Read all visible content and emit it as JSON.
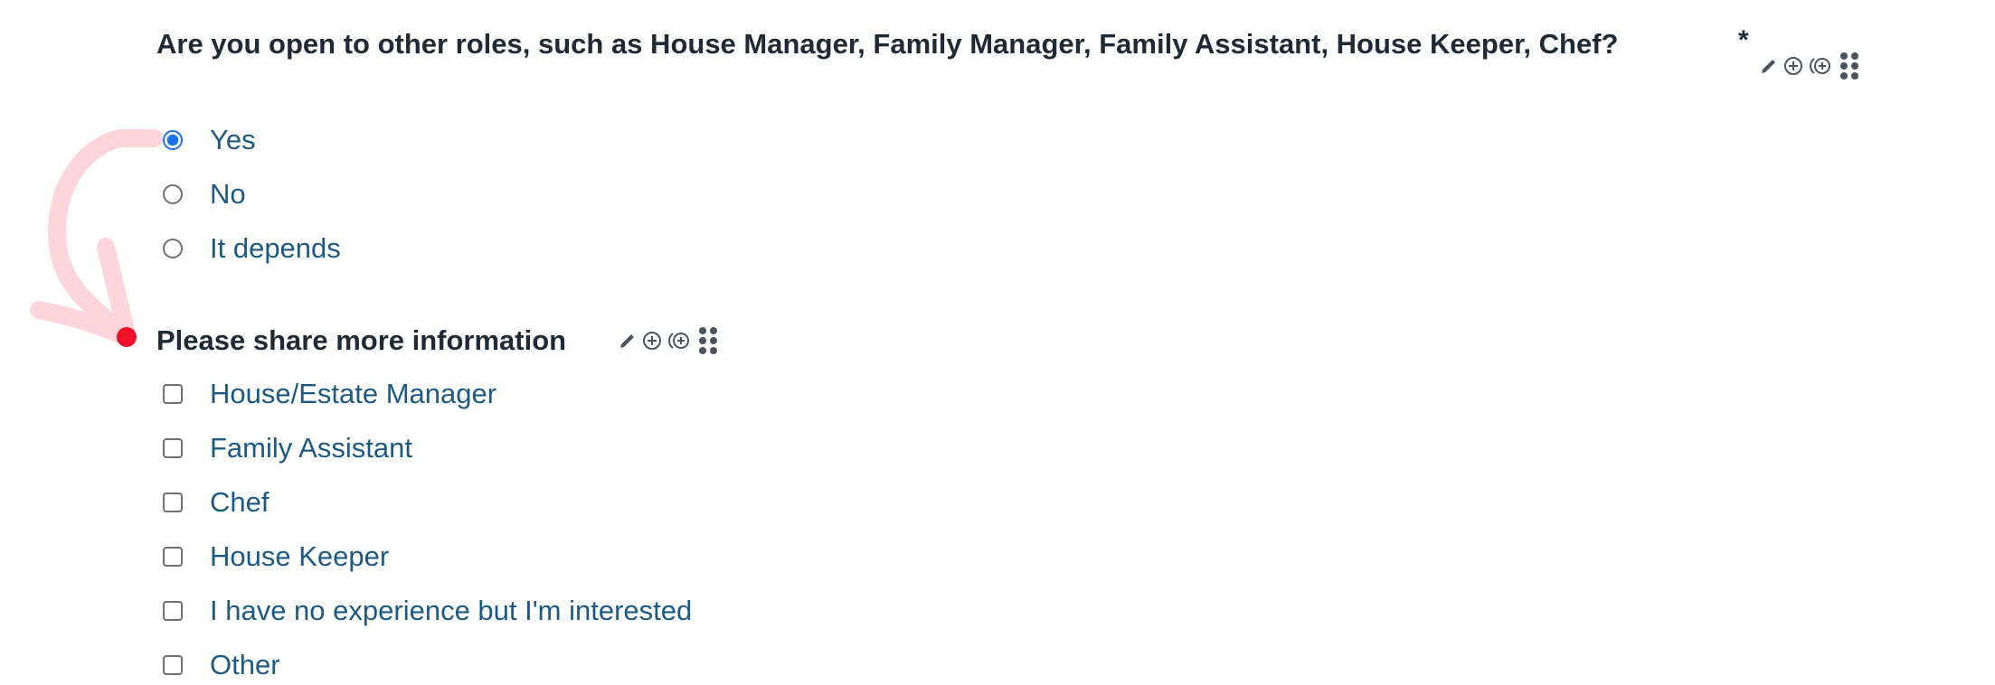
{
  "question1": {
    "title": "Are you open to other roles, such as House Manager, Family Manager, Family Assistant, House Keeper, Chef?",
    "required_marker": "*",
    "options": [
      {
        "label": "Yes",
        "selected": true
      },
      {
        "label": "No",
        "selected": false
      },
      {
        "label": "It depends",
        "selected": false
      }
    ]
  },
  "question2": {
    "title": "Please share more information",
    "options": [
      {
        "label": "House/Estate Manager",
        "checked": false
      },
      {
        "label": "Family Assistant",
        "checked": false
      },
      {
        "label": "Chef",
        "checked": false
      },
      {
        "label": "House Keeper",
        "checked": false
      },
      {
        "label": "I have no experience but I'm interested",
        "checked": false
      },
      {
        "label": "Other",
        "checked": false
      }
    ]
  },
  "tool_icons": [
    "pencil-icon",
    "add-circle-icon",
    "add-branch-icon",
    "drag-handle-icon"
  ],
  "colors": {
    "title": "#1f2a37",
    "option_label": "#1b5a86",
    "radio_selected": "#1a73e8",
    "annotation_arrow": "#fdd5da",
    "annotation_dot": "#f0102a"
  }
}
